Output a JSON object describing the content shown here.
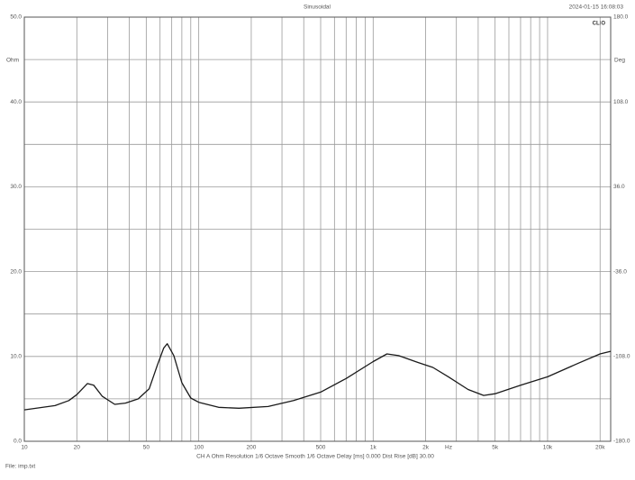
{
  "chart_data": {
    "type": "line",
    "title": "Sinusoidal",
    "timestamp": "2024-01-15 16:08:03",
    "logo": "CLIO",
    "y_unit": "Ohm",
    "y2_unit": "Deg",
    "x_unit": "Hz",
    "footer": "CH A   Ohm   Resolution 1/6 Octave   Smooth 1/6 Octave   Delay [ms] 0.000   Dist Rise [dB] 30.00",
    "file": "File: imp.txt",
    "xscale": "log",
    "xlim": [
      10,
      23000
    ],
    "xticks": [
      10,
      20,
      50,
      100,
      200,
      500,
      {
        "value": 1000,
        "label": "1k"
      },
      {
        "value": 2000,
        "label": "2k"
      },
      {
        "value": 5000,
        "label": "5k"
      },
      {
        "value": 10000,
        "label": "10k"
      },
      {
        "value": 20000,
        "label": "20k"
      }
    ],
    "xminor": [
      30,
      40,
      60,
      70,
      80,
      90,
      300,
      400,
      600,
      700,
      800,
      900,
      3000,
      4000,
      6000,
      7000,
      8000,
      9000
    ],
    "ylim": [
      0,
      50
    ],
    "yticks": [
      {
        "value": 0,
        "label": "0.0"
      },
      {
        "value": 10,
        "label": "10.0"
      },
      {
        "value": 20,
        "label": "20.0"
      },
      {
        "value": 30,
        "label": "30.0"
      },
      {
        "value": 40,
        "label": "40.0"
      },
      {
        "value": 50,
        "label": "50.0"
      }
    ],
    "yminor": [
      5,
      15,
      25,
      35,
      45
    ],
    "y2lim": [
      -180,
      180
    ],
    "y2ticks": [
      {
        "value": -180,
        "label": "-180.0"
      },
      {
        "value": -108,
        "label": "-108.0"
      },
      {
        "value": -36,
        "label": "-36.0"
      },
      {
        "value": 36,
        "label": "36.0"
      },
      {
        "value": 108,
        "label": "108.0"
      },
      {
        "value": 180,
        "label": "180.0"
      }
    ],
    "grid": true,
    "x": [
      10,
      15,
      18,
      20,
      23,
      25,
      28,
      33,
      38,
      45,
      52,
      58,
      63,
      66,
      72,
      80,
      90,
      100,
      130,
      170,
      250,
      350,
      500,
      700,
      1000,
      1200,
      1400,
      1800,
      2200,
      2700,
      3500,
      4300,
      5000,
      7000,
      10000,
      15000,
      20000,
      23000
    ],
    "series": [
      {
        "name": "Ohm",
        "color": "#1a1a1a",
        "values": [
          3.7,
          4.2,
          4.8,
          5.5,
          6.8,
          6.6,
          5.3,
          4.35,
          4.5,
          5.0,
          6.2,
          9.0,
          11.0,
          11.5,
          10.1,
          6.9,
          5.1,
          4.6,
          4.0,
          3.9,
          4.1,
          4.8,
          5.8,
          7.4,
          9.4,
          10.3,
          10.1,
          9.3,
          8.7,
          7.6,
          6.1,
          5.4,
          5.6,
          6.6,
          7.6,
          9.2,
          10.3,
          10.6
        ]
      }
    ]
  }
}
